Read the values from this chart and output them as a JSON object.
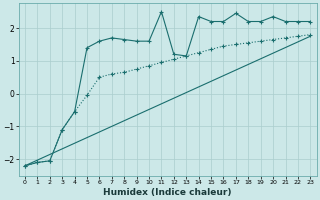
{
  "xlabel": "Humidex (Indice chaleur)",
  "background_color": "#cce8e8",
  "grid_color": "#aacece",
  "line_color": "#1a6e6e",
  "xlim": [
    -0.5,
    23.5
  ],
  "ylim": [
    -2.5,
    2.75
  ],
  "yticks": [
    -2,
    -1,
    0,
    1,
    2
  ],
  "xticks": [
    0,
    1,
    2,
    3,
    4,
    5,
    6,
    7,
    8,
    9,
    10,
    11,
    12,
    13,
    14,
    15,
    16,
    17,
    18,
    19,
    20,
    21,
    22,
    23
  ],
  "curve1_x": [
    0,
    1,
    2,
    3,
    4,
    5,
    6,
    7,
    8,
    9,
    10,
    11,
    12,
    13,
    14,
    15,
    16,
    17,
    18,
    19,
    20,
    21,
    22,
    23
  ],
  "curve1_y": [
    -2.2,
    -2.1,
    -2.05,
    -1.1,
    -0.55,
    1.4,
    1.6,
    1.7,
    1.65,
    1.6,
    1.6,
    2.5,
    1.2,
    1.15,
    2.35,
    2.2,
    2.2,
    2.45,
    2.2,
    2.2,
    2.35,
    2.2,
    2.2,
    2.2
  ],
  "curve2_x": [
    0,
    1,
    2,
    3,
    4,
    5,
    6,
    7,
    8,
    9,
    10,
    11,
    12,
    13,
    14,
    15,
    16,
    17,
    18,
    19,
    20,
    21,
    22,
    23
  ],
  "curve2_y": [
    -2.2,
    -2.1,
    -2.05,
    -1.1,
    -0.55,
    -0.05,
    0.5,
    0.6,
    0.65,
    0.75,
    0.85,
    0.95,
    1.05,
    1.15,
    1.25,
    1.35,
    1.45,
    1.5,
    1.55,
    1.6,
    1.65,
    1.7,
    1.75,
    1.8
  ],
  "curve3_x": [
    0,
    23
  ],
  "curve3_y": [
    -2.2,
    1.75
  ]
}
